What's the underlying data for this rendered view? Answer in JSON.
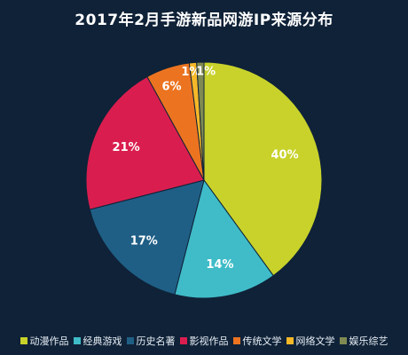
{
  "chart_data": {
    "type": "pie",
    "title": "2017年2月手游新品网游IP来源分布",
    "slices": [
      {
        "label": "动漫作品",
        "value": 40,
        "display": "40%",
        "color": "#c8d22a"
      },
      {
        "label": "经典游戏",
        "value": 14,
        "display": "14%",
        "color": "#3fbcc8"
      },
      {
        "label": "历史名著",
        "value": 17,
        "display": "17%",
        "color": "#1f5f86"
      },
      {
        "label": "影视作品",
        "value": 21,
        "display": "21%",
        "color": "#d91e4f"
      },
      {
        "label": "传统文学",
        "value": 6,
        "display": "6%",
        "color": "#ec7420"
      },
      {
        "label": "网络文学",
        "value": 1,
        "display": "1%",
        "color": "#f7b828"
      },
      {
        "label": "娱乐综艺",
        "value": 1,
        "display": "1%",
        "color": "#7f8a52"
      }
    ],
    "legend_position": "bottom"
  }
}
